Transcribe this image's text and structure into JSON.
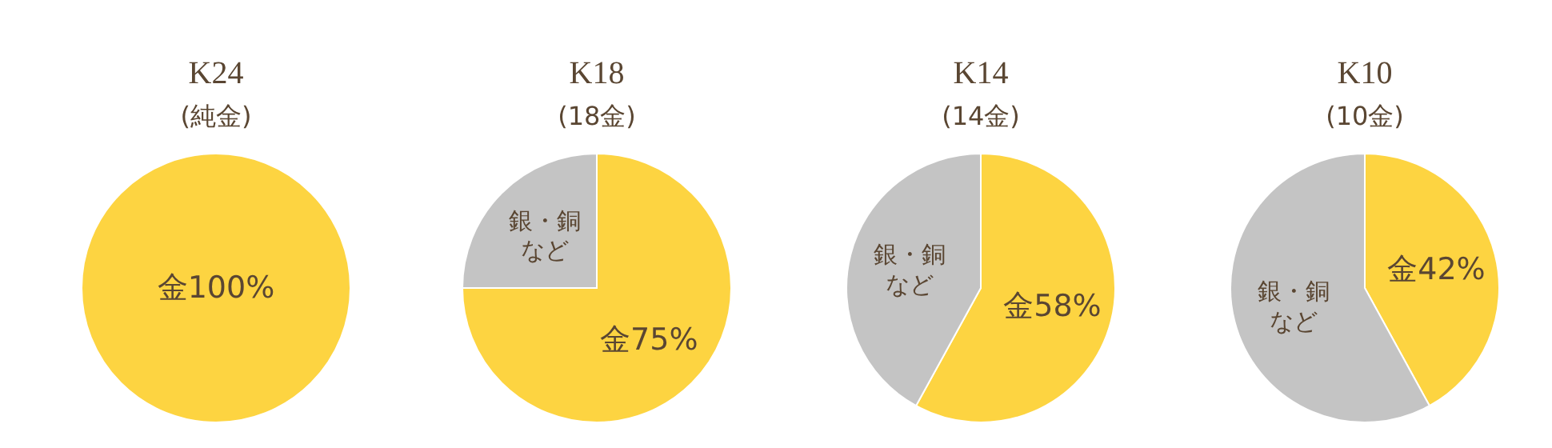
{
  "chart_data": [
    {
      "type": "pie",
      "title": "K24",
      "subtitle": "(純金)",
      "categories": [
        "金"
      ],
      "values": [
        100
      ],
      "colors": [
        "#fdd441"
      ],
      "value_labels": [
        "100%"
      ]
    },
    {
      "type": "pie",
      "title": "K18",
      "subtitle": "(18金)",
      "categories": [
        "金",
        "銀・銅など"
      ],
      "values": [
        75,
        25
      ],
      "colors": [
        "#fdd441",
        "#c4c4c4"
      ],
      "value_labels": [
        "75%",
        null
      ]
    },
    {
      "type": "pie",
      "title": "K14",
      "subtitle": "(14金)",
      "categories": [
        "金",
        "銀・銅など"
      ],
      "values": [
        58,
        42
      ],
      "colors": [
        "#fdd441",
        "#c4c4c4"
      ],
      "value_labels": [
        "58%",
        null
      ]
    },
    {
      "type": "pie",
      "title": "K10",
      "subtitle": "(10金)",
      "categories": [
        "金",
        "銀・銅など"
      ],
      "values": [
        42,
        58
      ],
      "colors": [
        "#fdd441",
        "#c4c4c4"
      ],
      "value_labels": [
        "42%",
        null
      ]
    }
  ]
}
